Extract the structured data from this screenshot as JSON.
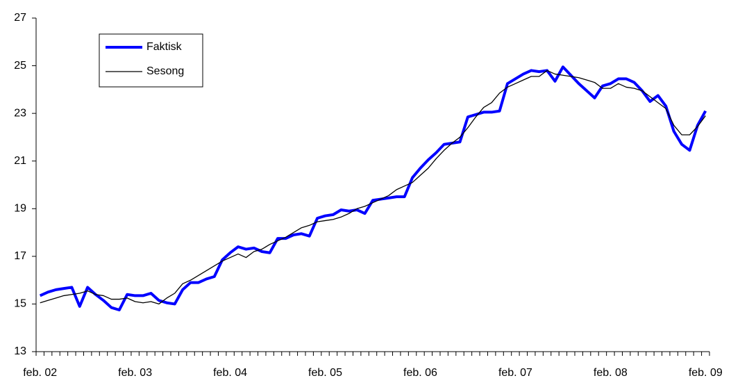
{
  "chart_data": {
    "type": "line",
    "categories": [
      "feb. 02",
      null,
      null,
      null,
      null,
      null,
      null,
      null,
      null,
      null,
      null,
      null,
      "feb. 03",
      null,
      null,
      null,
      null,
      null,
      null,
      null,
      null,
      null,
      null,
      null,
      "feb. 04",
      null,
      null,
      null,
      null,
      null,
      null,
      null,
      null,
      null,
      null,
      null,
      "feb. 05",
      null,
      null,
      null,
      null,
      null,
      null,
      null,
      null,
      null,
      null,
      null,
      "feb. 06",
      null,
      null,
      null,
      null,
      null,
      null,
      null,
      null,
      null,
      null,
      null,
      "feb. 07",
      null,
      null,
      null,
      null,
      null,
      null,
      null,
      null,
      null,
      null,
      null,
      "feb. 08",
      null,
      null,
      null,
      null,
      null,
      null,
      null,
      null,
      null,
      null,
      null,
      "feb. 09"
    ],
    "series": [
      {
        "name": "Faktisk",
        "color": "#0000ff",
        "width": 4,
        "values": [
          15.35,
          15.5,
          15.6,
          15.65,
          15.7,
          14.9,
          15.7,
          15.4,
          15.15,
          14.85,
          14.75,
          15.4,
          15.35,
          15.35,
          15.45,
          15.15,
          15.05,
          15.0,
          15.6,
          15.9,
          15.9,
          16.05,
          16.15,
          16.85,
          17.15,
          17.4,
          17.3,
          17.35,
          17.2,
          17.15,
          17.75,
          17.75,
          17.9,
          17.95,
          17.85,
          18.6,
          18.7,
          18.75,
          18.95,
          18.9,
          18.95,
          18.8,
          19.35,
          19.4,
          19.45,
          19.5,
          19.5,
          20.3,
          20.7,
          21.05,
          21.35,
          21.7,
          21.75,
          21.8,
          22.85,
          22.95,
          23.05,
          23.05,
          23.1,
          24.25,
          24.45,
          24.65,
          24.8,
          24.75,
          24.8,
          24.35,
          24.95,
          24.6,
          24.25,
          23.95,
          23.65,
          24.15,
          24.25,
          24.45,
          24.45,
          24.3,
          23.95,
          23.5,
          23.75,
          23.3,
          22.25,
          21.7,
          21.45,
          22.5,
          23.1
        ]
      },
      {
        "name": "Sesong",
        "color": "#000000",
        "width": 1.3,
        "values": [
          15.05,
          15.15,
          15.25,
          15.35,
          15.4,
          15.45,
          15.55,
          15.4,
          15.35,
          15.2,
          15.2,
          15.25,
          15.1,
          15.05,
          15.1,
          15.0,
          15.25,
          15.45,
          15.85,
          16.0,
          16.2,
          16.4,
          16.6,
          16.8,
          16.95,
          17.1,
          16.95,
          17.2,
          17.3,
          17.5,
          17.65,
          17.8,
          18.0,
          18.2,
          18.3,
          18.45,
          18.5,
          18.55,
          18.65,
          18.8,
          19.0,
          19.1,
          19.25,
          19.4,
          19.55,
          19.8,
          19.95,
          20.1,
          20.4,
          20.7,
          21.1,
          21.45,
          21.75,
          22.0,
          22.4,
          22.85,
          23.25,
          23.45,
          23.85,
          24.1,
          24.25,
          24.4,
          24.55,
          24.55,
          24.8,
          24.65,
          24.6,
          24.55,
          24.5,
          24.4,
          24.3,
          24.05,
          24.05,
          24.25,
          24.1,
          24.05,
          23.95,
          23.7,
          23.45,
          23.2,
          22.5,
          22.1,
          22.1,
          22.45,
          22.9
        ]
      }
    ],
    "ylim": [
      13,
      27
    ],
    "yticks": [
      13,
      15,
      17,
      19,
      21,
      23,
      25,
      27
    ],
    "grid": false,
    "legend": "top-left"
  }
}
